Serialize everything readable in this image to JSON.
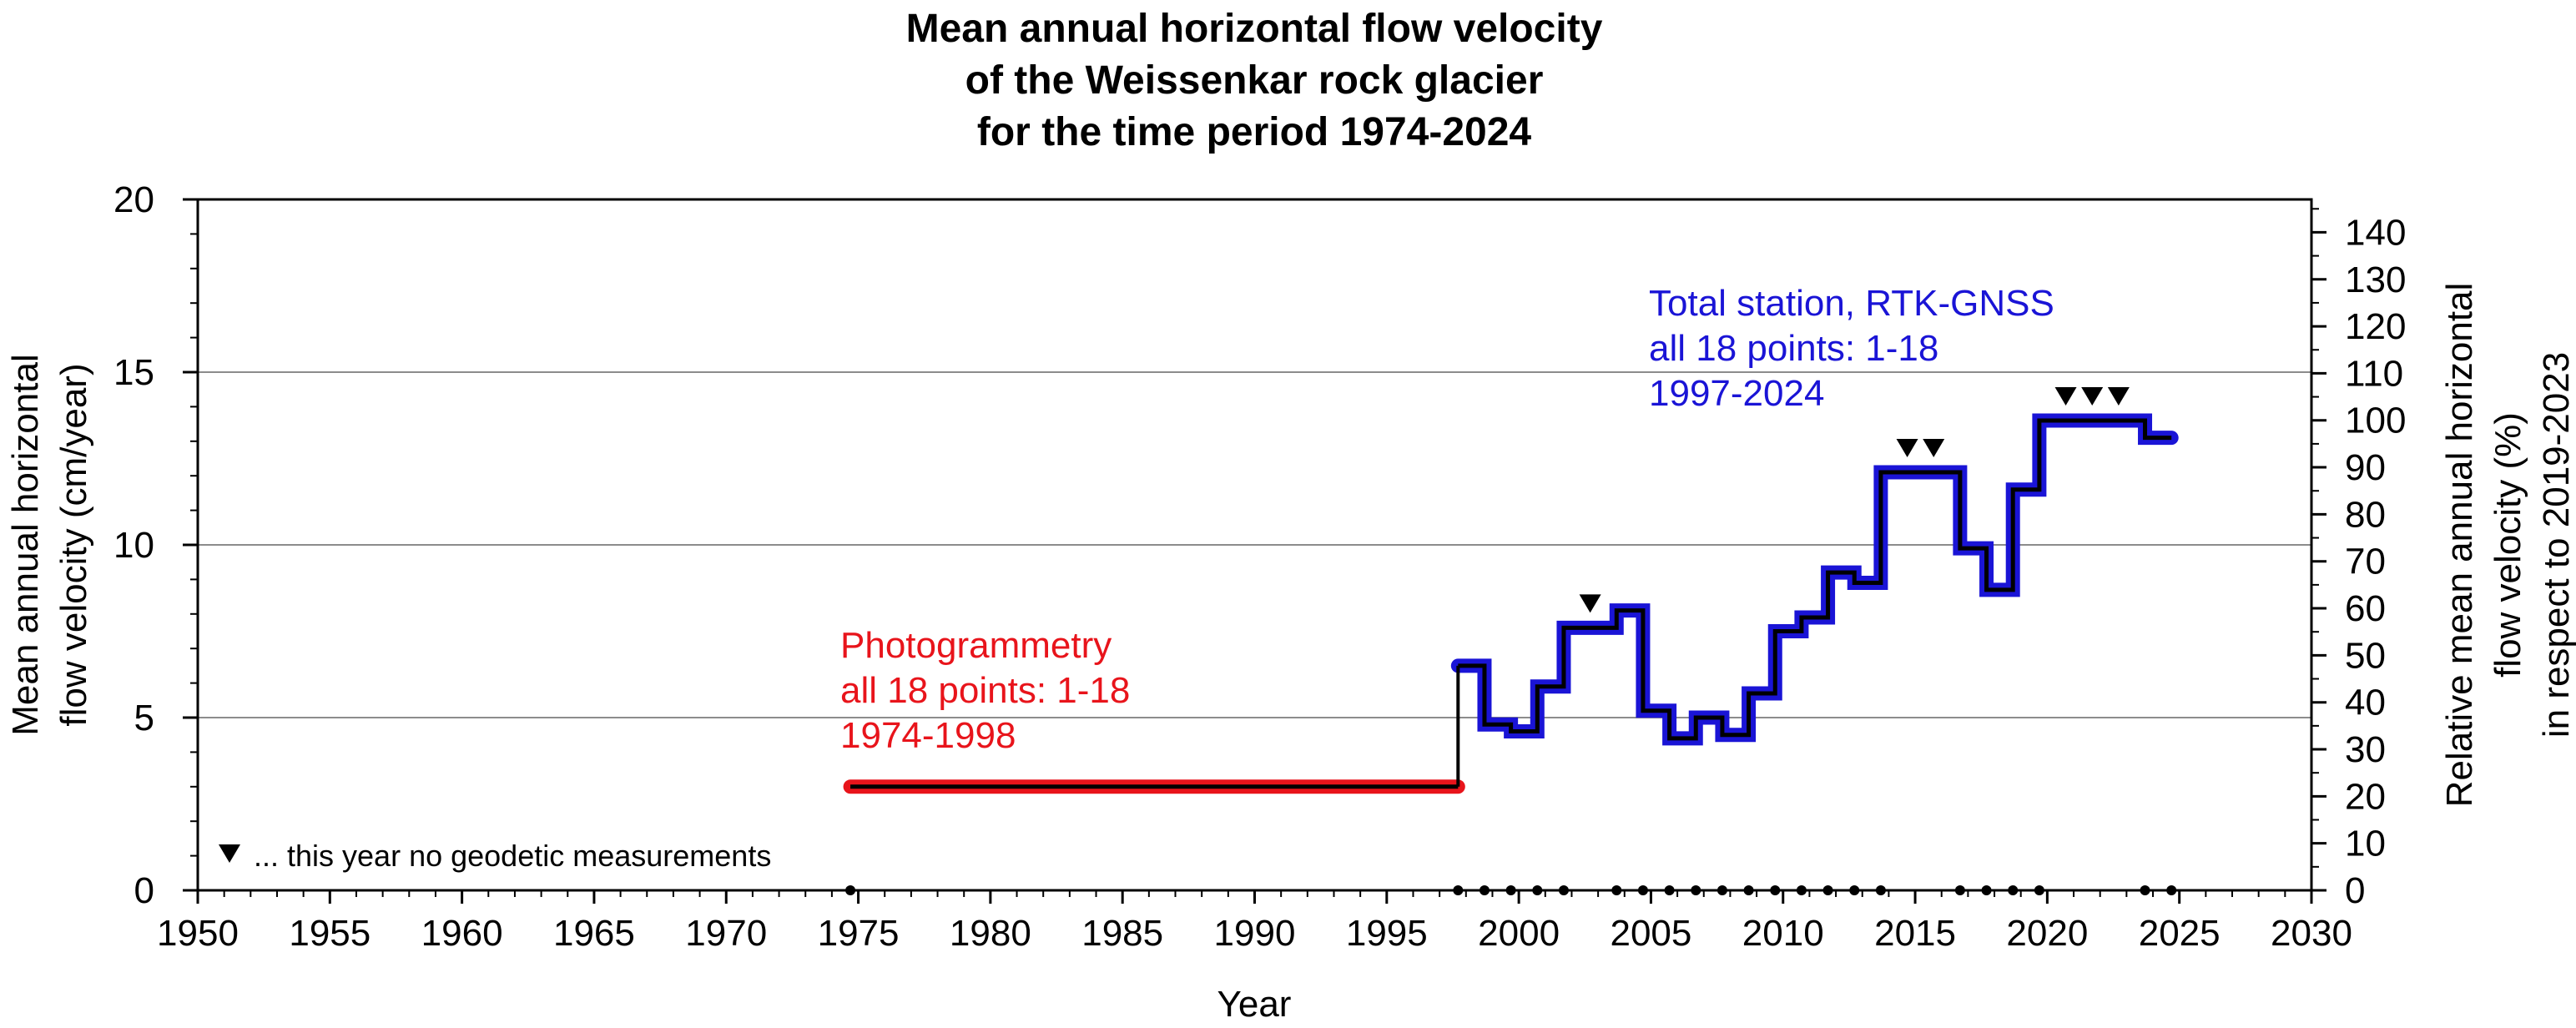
{
  "chart_data": {
    "type": "line",
    "title_lines": [
      "Mean annual horizontal flow velocity",
      "of the Weissenkar rock glacier",
      "for the time period 1974-2024"
    ],
    "xlabel": "Year",
    "ylabel_lines": [
      "Mean annual horizontal",
      "flow velocity (cm/year)"
    ],
    "y2label_lines": [
      "Relative mean annual horizontal",
      "flow velocity (%)",
      "in respect to 2019-2023"
    ],
    "xlim": [
      1950,
      2030
    ],
    "ylim": [
      0,
      20
    ],
    "y2lim": [
      0,
      147
    ],
    "x_ticks": [
      1950,
      1955,
      1960,
      1965,
      1970,
      1975,
      1980,
      1985,
      1990,
      1995,
      2000,
      2005,
      2010,
      2015,
      2020,
      2025,
      2030
    ],
    "y_ticks": [
      0,
      5,
      10,
      15,
      20
    ],
    "y2_ticks": [
      0,
      10,
      20,
      30,
      40,
      50,
      60,
      70,
      80,
      90,
      100,
      110,
      120,
      130,
      140
    ],
    "grid": "horizontal",
    "series": [
      {
        "name": "Photogrammetry",
        "color": "#e8141b",
        "steps": [
          {
            "x0": 1974.7,
            "x1": 1997.7,
            "y": 3.0
          }
        ]
      },
      {
        "name": "Total station, RTK-GNSS",
        "color": "#1a14d6",
        "steps": [
          {
            "x0": 1997.7,
            "x1": 1998.7,
            "y": 6.5
          },
          {
            "x0": 1998.7,
            "x1": 1999.7,
            "y": 4.8
          },
          {
            "x0": 1999.7,
            "x1": 2000.7,
            "y": 4.6
          },
          {
            "x0": 2000.7,
            "x1": 2001.7,
            "y": 5.9
          },
          {
            "x0": 2001.7,
            "x1": 2003.7,
            "y": 7.6
          },
          {
            "x0": 2003.7,
            "x1": 2004.7,
            "y": 8.1
          },
          {
            "x0": 2004.7,
            "x1": 2005.7,
            "y": 5.2
          },
          {
            "x0": 2005.7,
            "x1": 2006.7,
            "y": 4.4
          },
          {
            "x0": 2006.7,
            "x1": 2007.7,
            "y": 5.0
          },
          {
            "x0": 2007.7,
            "x1": 2008.7,
            "y": 4.5
          },
          {
            "x0": 2008.7,
            "x1": 2009.7,
            "y": 5.7
          },
          {
            "x0": 2009.7,
            "x1": 2010.7,
            "y": 7.5
          },
          {
            "x0": 2010.7,
            "x1": 2011.7,
            "y": 7.9
          },
          {
            "x0": 2011.7,
            "x1": 2012.7,
            "y": 9.2
          },
          {
            "x0": 2012.7,
            "x1": 2013.7,
            "y": 8.9
          },
          {
            "x0": 2013.7,
            "x1": 2016.7,
            "y": 12.1
          },
          {
            "x0": 2016.7,
            "x1": 2017.7,
            "y": 9.9
          },
          {
            "x0": 2017.7,
            "x1": 2018.7,
            "y": 8.7
          },
          {
            "x0": 2018.7,
            "x1": 2019.7,
            "y": 11.6
          },
          {
            "x0": 2019.7,
            "x1": 2023.7,
            "y": 13.6
          },
          {
            "x0": 2023.7,
            "x1": 2024.7,
            "y": 13.1
          }
        ]
      }
    ],
    "connector": {
      "x": 1997.7,
      "y0": 3.0,
      "y1": 6.5
    },
    "measurement_years": [
      1974.7,
      1997.7,
      1998.7,
      1999.7,
      2000.7,
      2001.7,
      2003.7,
      2004.7,
      2005.7,
      2006.7,
      2007.7,
      2008.7,
      2009.7,
      2010.7,
      2011.7,
      2012.7,
      2013.7,
      2016.7,
      2017.7,
      2018.7,
      2019.7,
      2023.7,
      2024.7
    ],
    "no_measurement_years": [
      2002.7,
      2014.7,
      2015.7,
      2020.7,
      2021.7,
      2022.7
    ],
    "annotations": {
      "photogrammetry": [
        "Photogrammetry",
        "all 18 points: 1-18",
        "1974-1998"
      ],
      "total_station": [
        "Total station, RTK-GNSS",
        "all 18 points: 1-18",
        "1997-2024"
      ]
    },
    "legend": {
      "text": "... this year no geodetic measurements",
      "placement": "bottom-left"
    }
  }
}
